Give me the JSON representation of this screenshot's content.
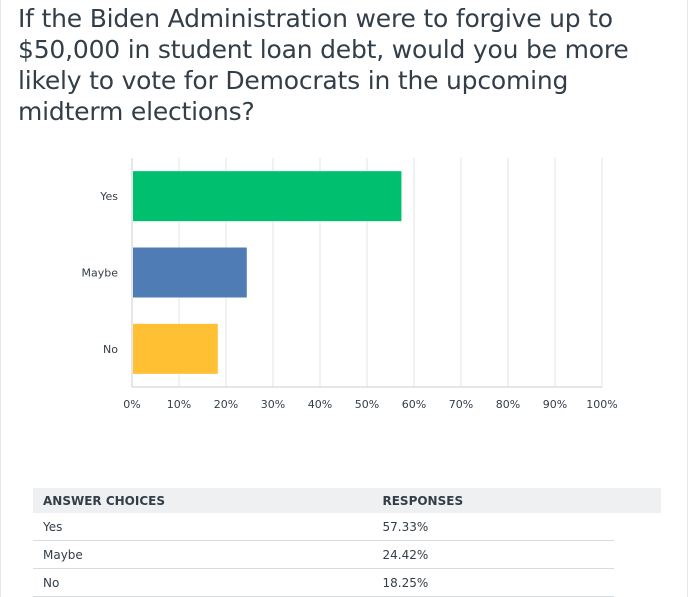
{
  "question": "If the Biden Administration were to forgive up to $50,000 in student loan debt, would you be more likely to vote for Democrats in the upcoming midterm elections?",
  "chart_data": {
    "type": "bar",
    "orientation": "horizontal",
    "categories": [
      "Yes",
      "Maybe",
      "No"
    ],
    "values": [
      57.33,
      24.42,
      18.25
    ],
    "colors": [
      "#00bf6f",
      "#507cb6",
      "#ffc034"
    ],
    "xlim": [
      0,
      100
    ],
    "xticks": [
      "0%",
      "10%",
      "20%",
      "30%",
      "40%",
      "50%",
      "60%",
      "70%",
      "80%",
      "90%",
      "100%"
    ],
    "grid": true
  },
  "table": {
    "headers": [
      "ANSWER CHOICES",
      "RESPONSES"
    ],
    "rows": [
      {
        "choice": "Yes",
        "response": "57.33%"
      },
      {
        "choice": "Maybe",
        "response": "24.42%"
      },
      {
        "choice": "No",
        "response": "18.25%"
      }
    ]
  }
}
